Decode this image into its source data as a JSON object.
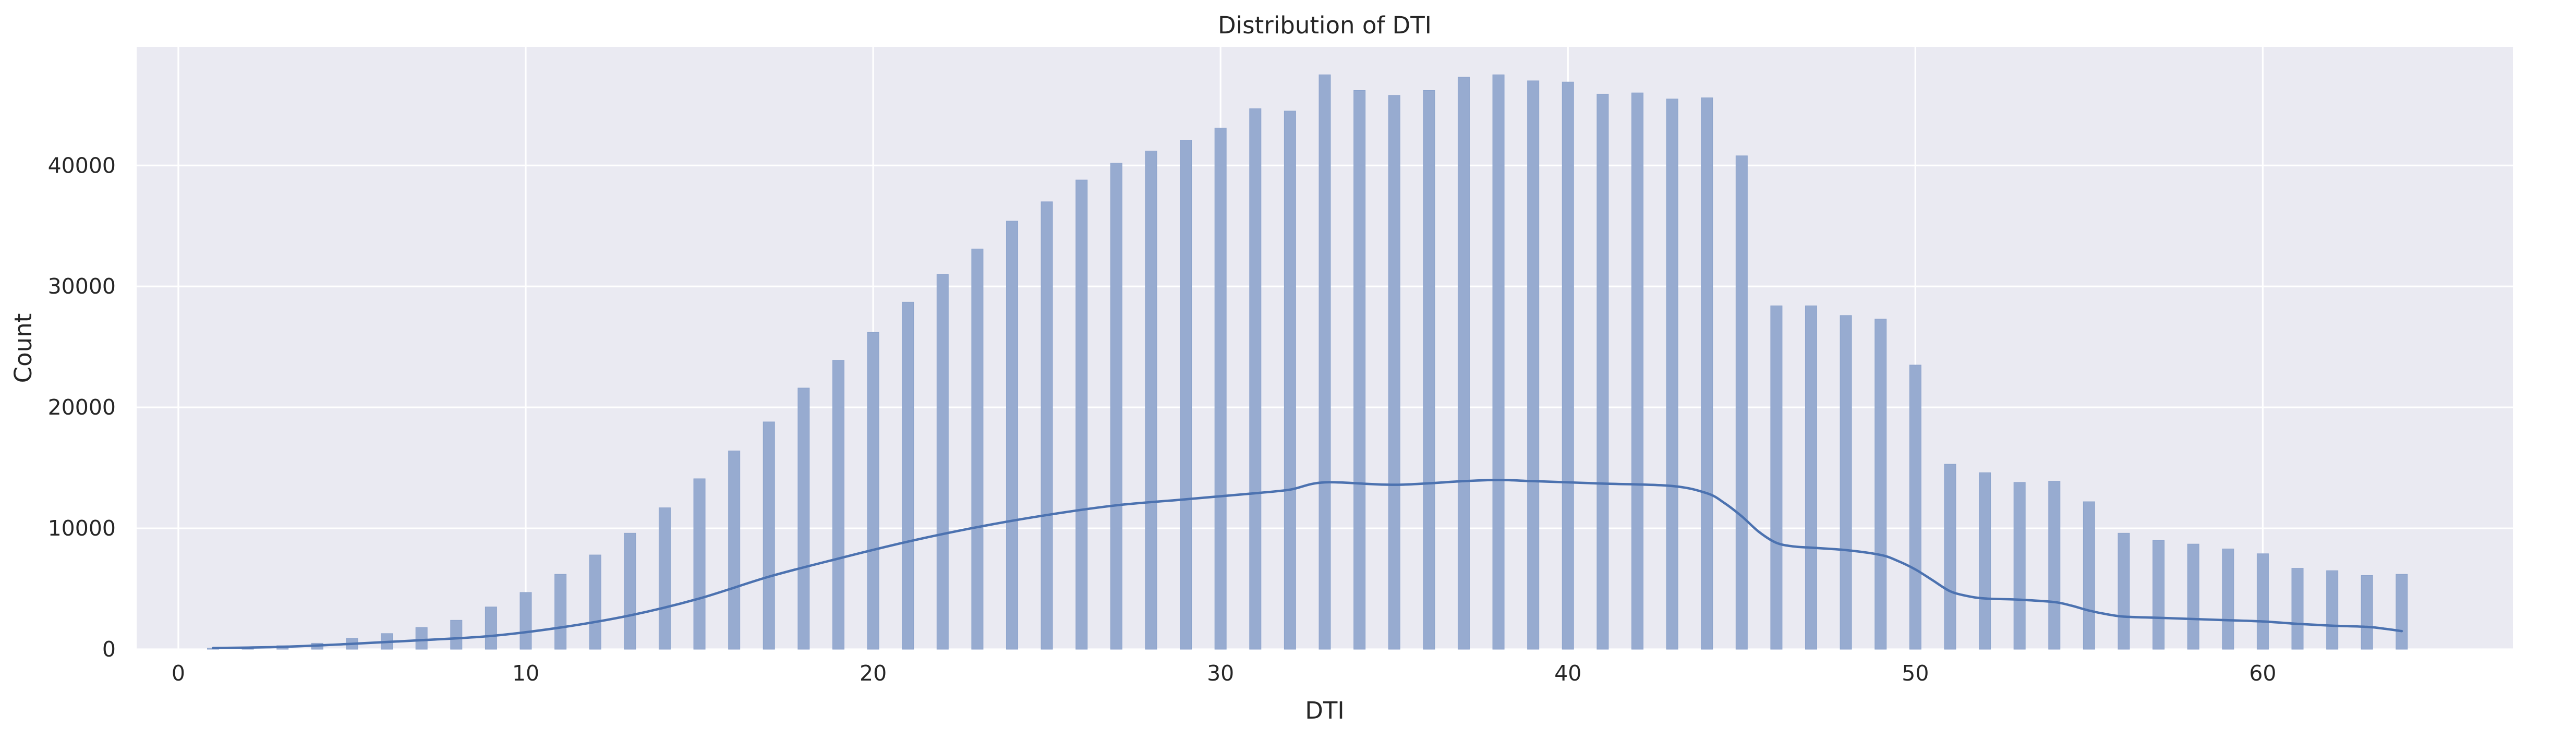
{
  "chart_data": {
    "type": "bar",
    "title": "Distribution of DTI",
    "xlabel": "DTI",
    "ylabel": "Count",
    "xlim": [
      -1.2,
      67.2
    ],
    "ylim": [
      0,
      49800
    ],
    "xticks": [
      0,
      10,
      20,
      30,
      40,
      50,
      60
    ],
    "yticks": [
      0,
      10000,
      20000,
      30000,
      40000
    ],
    "grid": true,
    "bar_color": "#97abd0",
    "kde_color": "#4c72b0",
    "series": [
      {
        "type": "histogram",
        "x": [
          1,
          2,
          3,
          4,
          5,
          6,
          7,
          8,
          9,
          10,
          11,
          12,
          13,
          14,
          15,
          16,
          17,
          18,
          19,
          20,
          21,
          22,
          23,
          24,
          25,
          26,
          27,
          28,
          29,
          30,
          31,
          32,
          33,
          34,
          35,
          36,
          37,
          38,
          39,
          40,
          41,
          42,
          43,
          44,
          45,
          46,
          47,
          48,
          49,
          50,
          51,
          52,
          53,
          54,
          55,
          56,
          57,
          58,
          59,
          60,
          61,
          62,
          63,
          64
        ],
        "values": [
          100,
          150,
          300,
          500,
          900,
          1300,
          1800,
          2400,
          3500,
          4700,
          6200,
          7800,
          9600,
          11700,
          14100,
          16400,
          18800,
          21600,
          23900,
          26200,
          28700,
          31000,
          33100,
          35400,
          37000,
          38800,
          40200,
          41200,
          42100,
          43100,
          44700,
          44500,
          47500,
          46200,
          45800,
          46200,
          47300,
          47500,
          47000,
          46900,
          45900,
          46000,
          45500,
          45600,
          40800,
          28400,
          28400,
          27600,
          27300,
          23500,
          15300,
          14600,
          13800,
          13900,
          12200,
          9600,
          9000,
          8700,
          8300,
          7900,
          6700,
          6500,
          6100,
          6200
        ]
      },
      {
        "type": "kde",
        "x": [
          1,
          3,
          5,
          7,
          9,
          11,
          13,
          15,
          17,
          19,
          21,
          23,
          25,
          27,
          29,
          31,
          32,
          33,
          35,
          37,
          38,
          39,
          41,
          43,
          44,
          44.5,
          45,
          45.5,
          46,
          46.5,
          47,
          48,
          49,
          49.5,
          50,
          50.5,
          51,
          51.5,
          52,
          53,
          54,
          54.5,
          55,
          55.5,
          56,
          57,
          58,
          59,
          60,
          61,
          62,
          63,
          63.5,
          64
        ],
        "values": [
          100,
          200,
          450,
          750,
          1100,
          1800,
          2800,
          4200,
          6000,
          7500,
          8900,
          10100,
          11100,
          11900,
          12400,
          12900,
          13200,
          13800,
          13600,
          13900,
          14000,
          13900,
          13700,
          13500,
          12900,
          12100,
          11000,
          9700,
          8800,
          8500,
          8400,
          8200,
          7800,
          7300,
          6600,
          5700,
          4800,
          4400,
          4200,
          4100,
          3900,
          3600,
          3200,
          2900,
          2700,
          2600,
          2500,
          2400,
          2300,
          2100,
          1950,
          1850,
          1700,
          1500
        ]
      }
    ]
  }
}
